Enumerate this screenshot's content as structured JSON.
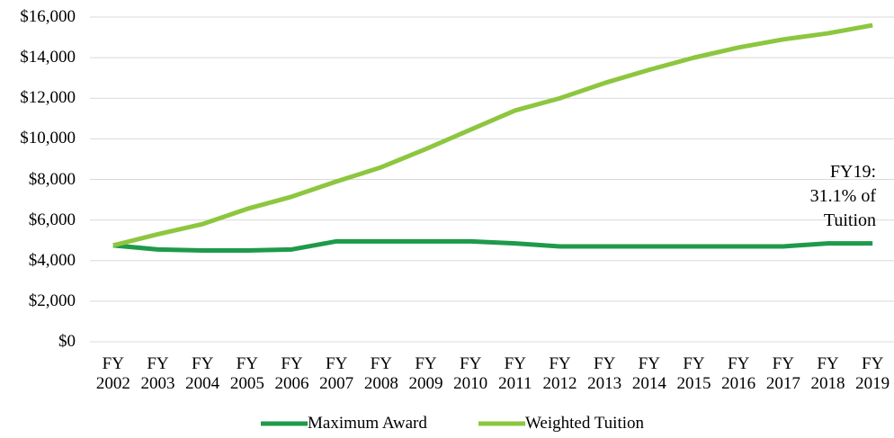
{
  "chart_data": {
    "type": "line",
    "categories": [
      "FY 2002",
      "FY 2003",
      "FY 2004",
      "FY 2005",
      "FY 2006",
      "FY 2007",
      "FY 2008",
      "FY 2009",
      "FY 2010",
      "FY 2011",
      "FY 2012",
      "FY 2013",
      "FY 2014",
      "FY 2015",
      "FY 2016",
      "FY 2017",
      "FY 2018",
      "FY 2019"
    ],
    "series": [
      {
        "name": "Maximum Award",
        "color": "#1e9a4a",
        "values": [
          4750,
          4550,
          4500,
          4500,
          4550,
          4950,
          4950,
          4950,
          4950,
          4850,
          4700,
          4700,
          4700,
          4700,
          4700,
          4700,
          4850,
          4850
        ]
      },
      {
        "name": "Weighted Tuition",
        "color": "#8dc63f",
        "values": [
          4750,
          5300,
          5800,
          6550,
          7150,
          7900,
          8600,
          9500,
          10450,
          11400,
          12000,
          12750,
          13400,
          14000,
          14500,
          14900,
          15200,
          15600
        ]
      }
    ],
    "ylim": [
      0,
      16000
    ],
    "yticks": [
      {
        "value": 0,
        "label": "$0"
      },
      {
        "value": 2000,
        "label": "$2,000"
      },
      {
        "value": 4000,
        "label": "$4,000"
      },
      {
        "value": 6000,
        "label": "$6,000"
      },
      {
        "value": 8000,
        "label": "$8,000"
      },
      {
        "value": 10000,
        "label": "$10,000"
      },
      {
        "value": 12000,
        "label": "$12,000"
      },
      {
        "value": 14000,
        "label": "$14,000"
      },
      {
        "value": 16000,
        "label": "$16,000"
      }
    ],
    "grid": true,
    "legend": "bottom",
    "annotation": "FY19: 31.1% of Tuition"
  }
}
